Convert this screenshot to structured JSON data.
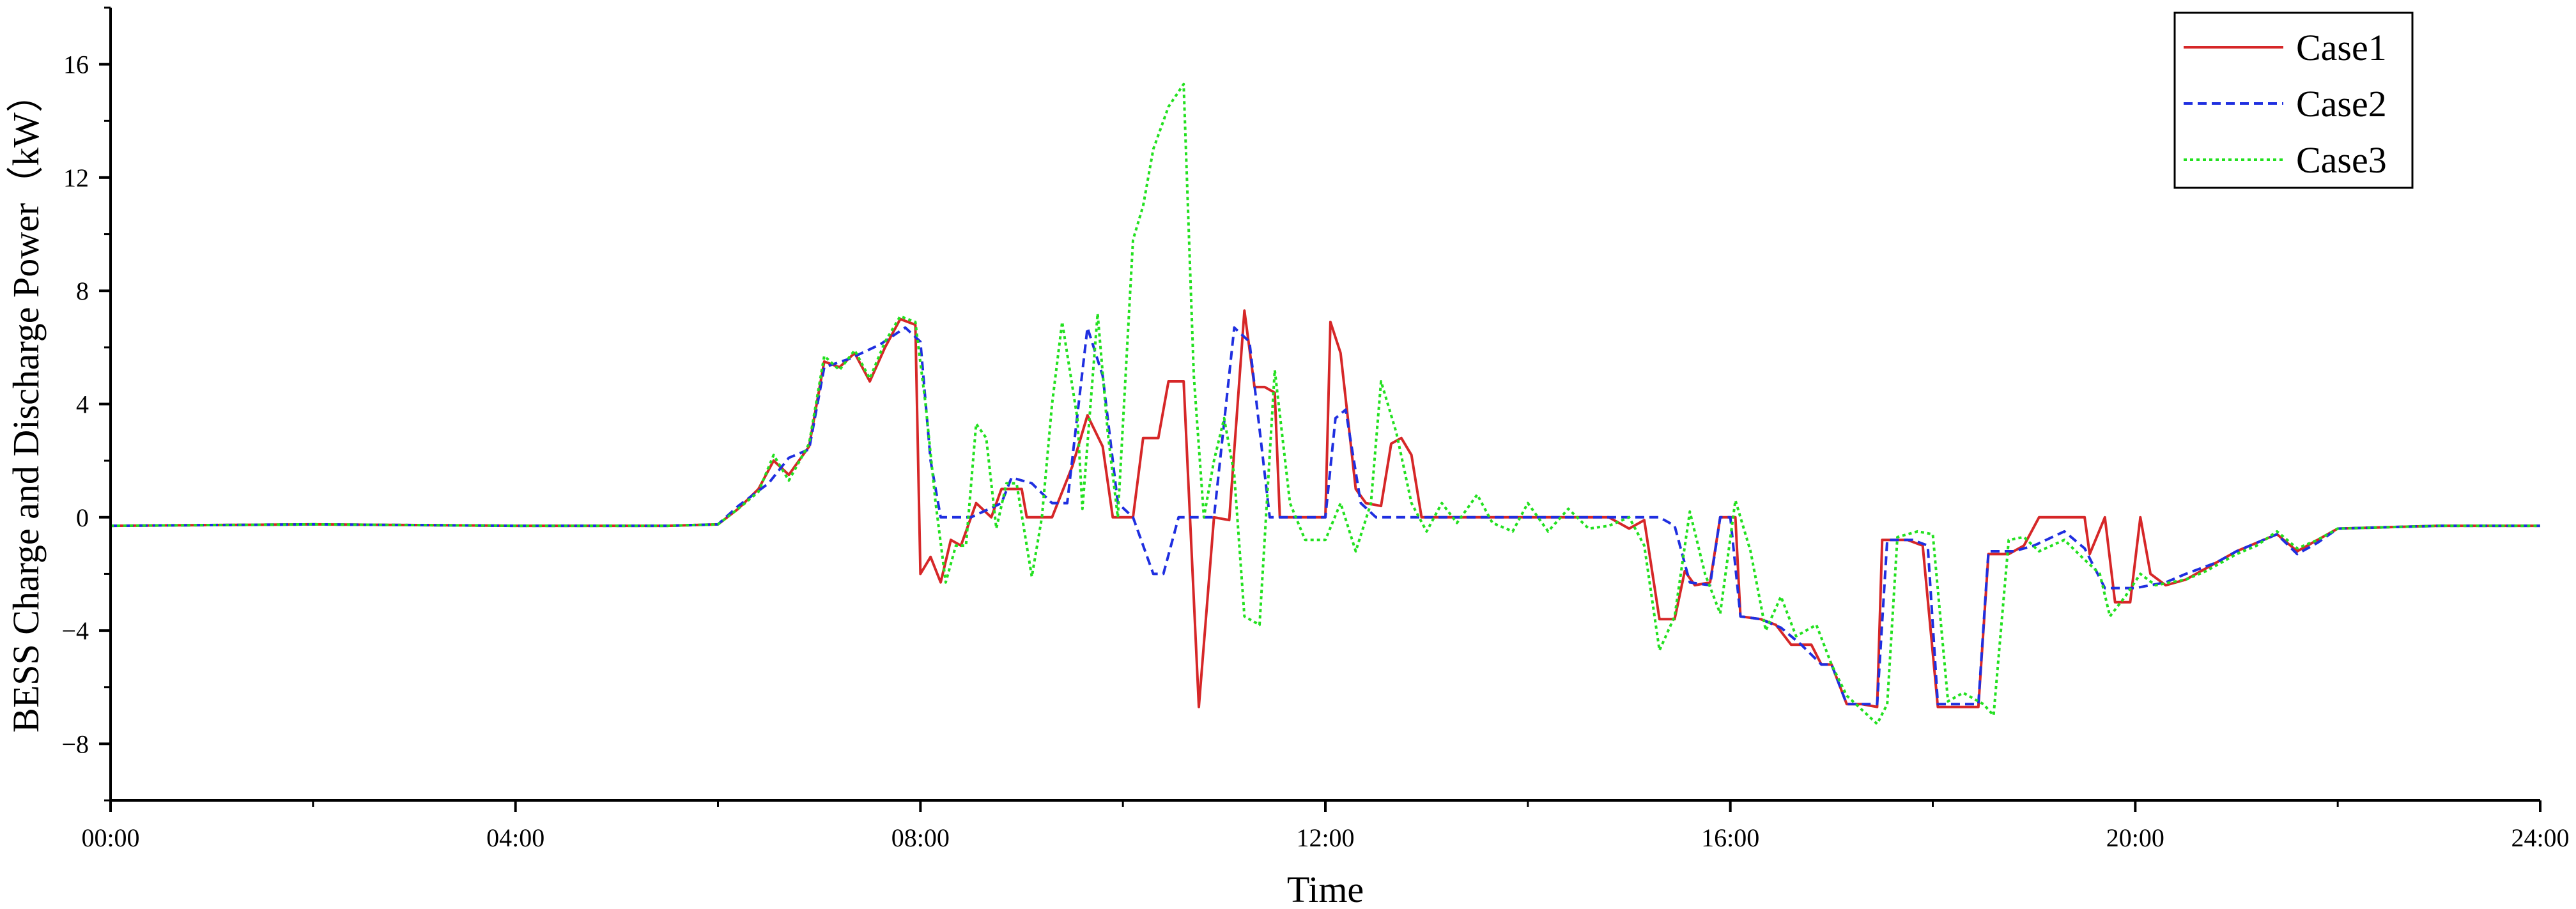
{
  "chart_data": {
    "type": "line",
    "title": "",
    "xlabel": "Time",
    "ylabel": "BESS Charge and Discharge Power（kW）",
    "xlim": [
      0,
      24
    ],
    "ylim": [
      -10,
      18
    ],
    "x_ticks": [
      0,
      4,
      8,
      12,
      16,
      20,
      24
    ],
    "x_tick_labels": [
      "00:00",
      "04:00",
      "08:00",
      "12:00",
      "16:00",
      "20:00",
      "24:00"
    ],
    "y_ticks": [
      -8,
      -4,
      0,
      4,
      8,
      12,
      16
    ],
    "y_tick_labels": [
      "−8",
      "−4",
      "0",
      "4",
      "8",
      "12",
      "16"
    ],
    "grid": false,
    "legend_position": "top-right",
    "series": [
      {
        "name": "Case1",
        "color": "#d62728",
        "dash": "solid",
        "points": [
          [
            0,
            -0.3
          ],
          [
            2,
            -0.25
          ],
          [
            4,
            -0.3
          ],
          [
            5.5,
            -0.3
          ],
          [
            6,
            -0.25
          ],
          [
            6.2,
            0.3
          ],
          [
            6.4,
            1.0
          ],
          [
            6.55,
            2.0
          ],
          [
            6.7,
            1.5
          ],
          [
            6.9,
            2.5
          ],
          [
            7.05,
            5.5
          ],
          [
            7.2,
            5.3
          ],
          [
            7.35,
            5.8
          ],
          [
            7.5,
            4.8
          ],
          [
            7.65,
            6.0
          ],
          [
            7.8,
            7.0
          ],
          [
            7.95,
            6.8
          ],
          [
            8.0,
            -2.0
          ],
          [
            8.1,
            -1.4
          ],
          [
            8.2,
            -2.3
          ],
          [
            8.3,
            -0.8
          ],
          [
            8.4,
            -1.0
          ],
          [
            8.55,
            0.5
          ],
          [
            8.7,
            0.0
          ],
          [
            8.8,
            1.0
          ],
          [
            9.0,
            1.0
          ],
          [
            9.05,
            0.0
          ],
          [
            9.3,
            0.0
          ],
          [
            9.5,
            1.8
          ],
          [
            9.65,
            3.6
          ],
          [
            9.8,
            2.5
          ],
          [
            9.9,
            0.0
          ],
          [
            10.1,
            0.0
          ],
          [
            10.2,
            2.8
          ],
          [
            10.35,
            2.8
          ],
          [
            10.45,
            4.8
          ],
          [
            10.6,
            4.8
          ],
          [
            10.75,
            -6.7
          ],
          [
            10.9,
            0.0
          ],
          [
            11.05,
            -0.1
          ],
          [
            11.2,
            7.3
          ],
          [
            11.3,
            4.6
          ],
          [
            11.4,
            4.6
          ],
          [
            11.5,
            4.4
          ],
          [
            11.55,
            0.0
          ],
          [
            12.0,
            0.0
          ],
          [
            12.05,
            6.9
          ],
          [
            12.15,
            5.8
          ],
          [
            12.3,
            1.0
          ],
          [
            12.4,
            0.5
          ],
          [
            12.55,
            0.4
          ],
          [
            12.65,
            2.6
          ],
          [
            12.75,
            2.8
          ],
          [
            12.85,
            2.2
          ],
          [
            12.95,
            0.0
          ],
          [
            14.8,
            0.0
          ],
          [
            15.0,
            -0.4
          ],
          [
            15.15,
            -0.1
          ],
          [
            15.3,
            -3.6
          ],
          [
            15.45,
            -3.6
          ],
          [
            15.55,
            -1.9
          ],
          [
            15.65,
            -2.4
          ],
          [
            15.8,
            -2.3
          ],
          [
            15.9,
            0.0
          ],
          [
            16.05,
            0.0
          ],
          [
            16.1,
            -3.5
          ],
          [
            16.3,
            -3.6
          ],
          [
            16.45,
            -3.8
          ],
          [
            16.6,
            -4.5
          ],
          [
            16.8,
            -4.5
          ],
          [
            16.9,
            -5.2
          ],
          [
            17.0,
            -5.2
          ],
          [
            17.15,
            -6.6
          ],
          [
            17.3,
            -6.6
          ],
          [
            17.45,
            -6.7
          ],
          [
            17.5,
            -0.8
          ],
          [
            17.75,
            -0.8
          ],
          [
            17.9,
            -1.0
          ],
          [
            18.05,
            -6.7
          ],
          [
            18.3,
            -6.7
          ],
          [
            18.45,
            -6.7
          ],
          [
            18.55,
            -1.3
          ],
          [
            18.75,
            -1.3
          ],
          [
            18.9,
            -1.0
          ],
          [
            19.05,
            0.0
          ],
          [
            19.5,
            0.0
          ],
          [
            19.55,
            -1.3
          ],
          [
            19.7,
            0.0
          ],
          [
            19.8,
            -3.0
          ],
          [
            19.95,
            -3.0
          ],
          [
            20.05,
            0.0
          ],
          [
            20.15,
            -2.0
          ],
          [
            20.3,
            -2.4
          ],
          [
            20.5,
            -2.2
          ],
          [
            20.7,
            -1.8
          ],
          [
            21.0,
            -1.2
          ],
          [
            21.2,
            -0.9
          ],
          [
            21.4,
            -0.6
          ],
          [
            21.6,
            -1.2
          ],
          [
            21.8,
            -0.8
          ],
          [
            22.0,
            -0.4
          ],
          [
            23.0,
            -0.3
          ],
          [
            24.0,
            -0.3
          ]
        ]
      },
      {
        "name": "Case2",
        "color": "#1f2fe0",
        "dash": "dashed",
        "points": [
          [
            0,
            -0.3
          ],
          [
            2,
            -0.25
          ],
          [
            4,
            -0.3
          ],
          [
            5.5,
            -0.3
          ],
          [
            6,
            -0.25
          ],
          [
            6.2,
            0.4
          ],
          [
            6.5,
            1.2
          ],
          [
            6.7,
            2.1
          ],
          [
            6.9,
            2.4
          ],
          [
            7.05,
            5.3
          ],
          [
            7.3,
            5.6
          ],
          [
            7.6,
            6.1
          ],
          [
            7.85,
            6.7
          ],
          [
            8.0,
            6.2
          ],
          [
            8.1,
            2.0
          ],
          [
            8.2,
            0.0
          ],
          [
            8.5,
            0.0
          ],
          [
            8.8,
            0.5
          ],
          [
            8.9,
            1.4
          ],
          [
            9.1,
            1.2
          ],
          [
            9.3,
            0.5
          ],
          [
            9.45,
            0.5
          ],
          [
            9.65,
            6.7
          ],
          [
            9.8,
            5.0
          ],
          [
            9.95,
            0.5
          ],
          [
            10.1,
            0.0
          ],
          [
            10.3,
            -2.0
          ],
          [
            10.4,
            -2.0
          ],
          [
            10.55,
            0.0
          ],
          [
            10.9,
            0.0
          ],
          [
            11.1,
            6.7
          ],
          [
            11.25,
            6.2
          ],
          [
            11.45,
            0.0
          ],
          [
            12.0,
            0.0
          ],
          [
            12.1,
            3.5
          ],
          [
            12.2,
            3.8
          ],
          [
            12.35,
            0.5
          ],
          [
            12.5,
            0.0
          ],
          [
            14.8,
            0.0
          ],
          [
            15.0,
            0.0
          ],
          [
            15.3,
            0.0
          ],
          [
            15.45,
            -0.3
          ],
          [
            15.6,
            -2.3
          ],
          [
            15.8,
            -2.4
          ],
          [
            15.9,
            0.0
          ],
          [
            16.0,
            0.0
          ],
          [
            16.1,
            -3.5
          ],
          [
            16.3,
            -3.6
          ],
          [
            16.5,
            -3.9
          ],
          [
            16.7,
            -4.5
          ],
          [
            16.9,
            -5.2
          ],
          [
            17.0,
            -5.2
          ],
          [
            17.15,
            -6.6
          ],
          [
            17.45,
            -6.6
          ],
          [
            17.55,
            -0.8
          ],
          [
            17.8,
            -0.8
          ],
          [
            17.95,
            -1.0
          ],
          [
            18.05,
            -6.6
          ],
          [
            18.45,
            -6.6
          ],
          [
            18.55,
            -1.2
          ],
          [
            18.8,
            -1.2
          ],
          [
            19.0,
            -1.0
          ],
          [
            19.3,
            -0.5
          ],
          [
            19.5,
            -1.1
          ],
          [
            19.7,
            -2.5
          ],
          [
            20.0,
            -2.5
          ],
          [
            20.3,
            -2.3
          ],
          [
            20.5,
            -2.0
          ],
          [
            20.8,
            -1.6
          ],
          [
            21.0,
            -1.2
          ],
          [
            21.2,
            -0.9
          ],
          [
            21.4,
            -0.6
          ],
          [
            21.6,
            -1.3
          ],
          [
            21.8,
            -0.9
          ],
          [
            22.0,
            -0.4
          ],
          [
            23.0,
            -0.3
          ],
          [
            24.0,
            -0.3
          ]
        ]
      },
      {
        "name": "Case3",
        "color": "#22e01f",
        "dash": "dotted",
        "points": [
          [
            0,
            -0.3
          ],
          [
            2,
            -0.25
          ],
          [
            4,
            -0.3
          ],
          [
            5.5,
            -0.3
          ],
          [
            6,
            -0.25
          ],
          [
            6.2,
            0.3
          ],
          [
            6.4,
            0.9
          ],
          [
            6.55,
            2.2
          ],
          [
            6.7,
            1.3
          ],
          [
            6.9,
            2.6
          ],
          [
            7.05,
            5.7
          ],
          [
            7.2,
            5.2
          ],
          [
            7.35,
            5.9
          ],
          [
            7.5,
            4.9
          ],
          [
            7.65,
            6.2
          ],
          [
            7.8,
            7.1
          ],
          [
            7.95,
            6.9
          ],
          [
            8.05,
            4.0
          ],
          [
            8.15,
            0.5
          ],
          [
            8.25,
            -2.3
          ],
          [
            8.35,
            -1.0
          ],
          [
            8.45,
            -1.0
          ],
          [
            8.55,
            3.3
          ],
          [
            8.65,
            2.8
          ],
          [
            8.75,
            -0.4
          ],
          [
            8.85,
            1.2
          ],
          [
            8.95,
            1.2
          ],
          [
            9.1,
            -2.1
          ],
          [
            9.2,
            0.0
          ],
          [
            9.3,
            4.0
          ],
          [
            9.4,
            6.9
          ],
          [
            9.55,
            3.5
          ],
          [
            9.6,
            0.3
          ],
          [
            9.75,
            7.2
          ],
          [
            9.85,
            3.0
          ],
          [
            9.95,
            0.0
          ],
          [
            10.1,
            9.8
          ],
          [
            10.2,
            11.0
          ],
          [
            10.3,
            13.0
          ],
          [
            10.45,
            14.5
          ],
          [
            10.6,
            15.3
          ],
          [
            10.7,
            5.0
          ],
          [
            10.8,
            0.0
          ],
          [
            10.9,
            2.0
          ],
          [
            11.0,
            3.5
          ],
          [
            11.1,
            1.5
          ],
          [
            11.2,
            -3.5
          ],
          [
            11.35,
            -3.8
          ],
          [
            11.5,
            5.2
          ],
          [
            11.65,
            0.5
          ],
          [
            11.8,
            -0.8
          ],
          [
            12.0,
            -0.8
          ],
          [
            12.15,
            0.5
          ],
          [
            12.3,
            -1.2
          ],
          [
            12.45,
            0.5
          ],
          [
            12.55,
            4.8
          ],
          [
            12.7,
            3.0
          ],
          [
            12.85,
            0.5
          ],
          [
            13.0,
            -0.5
          ],
          [
            13.15,
            0.5
          ],
          [
            13.3,
            -0.2
          ],
          [
            13.5,
            0.8
          ],
          [
            13.65,
            -0.2
          ],
          [
            13.85,
            -0.5
          ],
          [
            14.0,
            0.5
          ],
          [
            14.2,
            -0.5
          ],
          [
            14.4,
            0.3
          ],
          [
            14.6,
            -0.4
          ],
          [
            14.8,
            -0.3
          ],
          [
            15.0,
            0.0
          ],
          [
            15.15,
            -1.0
          ],
          [
            15.3,
            -4.7
          ],
          [
            15.45,
            -3.5
          ],
          [
            15.6,
            0.2
          ],
          [
            15.75,
            -2.0
          ],
          [
            15.9,
            -3.4
          ],
          [
            16.05,
            0.6
          ],
          [
            16.2,
            -1.2
          ],
          [
            16.35,
            -4.0
          ],
          [
            16.5,
            -2.8
          ],
          [
            16.65,
            -4.2
          ],
          [
            16.85,
            -3.8
          ],
          [
            17.0,
            -5.2
          ],
          [
            17.15,
            -6.3
          ],
          [
            17.3,
            -6.8
          ],
          [
            17.45,
            -7.3
          ],
          [
            17.55,
            -6.6
          ],
          [
            17.65,
            -0.7
          ],
          [
            17.85,
            -0.5
          ],
          [
            18.0,
            -0.6
          ],
          [
            18.15,
            -6.5
          ],
          [
            18.3,
            -6.2
          ],
          [
            18.5,
            -6.6
          ],
          [
            18.6,
            -7.0
          ],
          [
            18.75,
            -0.8
          ],
          [
            18.9,
            -0.7
          ],
          [
            19.05,
            -1.2
          ],
          [
            19.3,
            -0.8
          ],
          [
            19.5,
            -1.5
          ],
          [
            19.65,
            -2.0
          ],
          [
            19.75,
            -3.5
          ],
          [
            19.9,
            -2.8
          ],
          [
            20.05,
            -2.0
          ],
          [
            20.2,
            -2.4
          ],
          [
            20.35,
            -2.3
          ],
          [
            20.5,
            -2.2
          ],
          [
            20.7,
            -1.9
          ],
          [
            21.0,
            -1.3
          ],
          [
            21.2,
            -1.0
          ],
          [
            21.4,
            -0.5
          ],
          [
            21.6,
            -1.1
          ],
          [
            21.8,
            -0.8
          ],
          [
            22.0,
            -0.4
          ],
          [
            23.0,
            -0.3
          ],
          [
            24.0,
            -0.3
          ]
        ]
      }
    ]
  }
}
